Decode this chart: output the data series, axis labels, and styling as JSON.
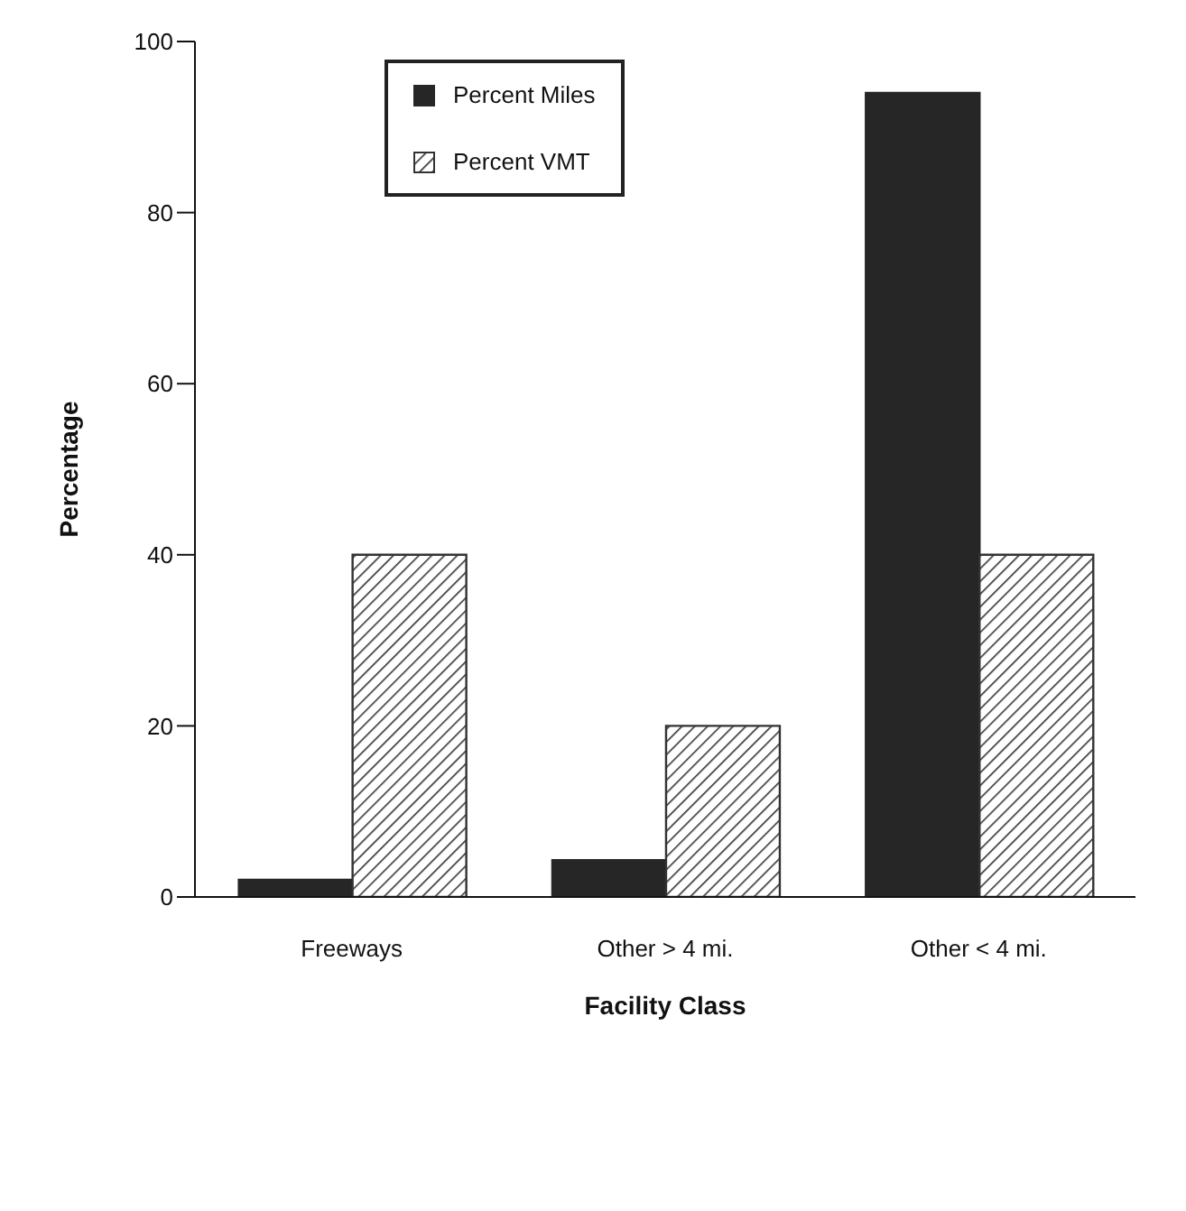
{
  "chart_data": {
    "type": "bar",
    "xlabel": "Facility Class",
    "ylabel": "Percentage",
    "categories": [
      "Freeways",
      "Other > 4 mi.",
      "Other < 4 mi."
    ],
    "series": [
      {
        "name": "Percent Miles",
        "color": "#262626",
        "values": [
          2,
          4.3,
          94
        ]
      },
      {
        "name": "Percent VMT",
        "color": "#333333",
        "values": [
          40,
          20,
          40
        ]
      }
    ],
    "ylim": [
      0,
      100
    ],
    "yticks": [
      0,
      20,
      40,
      60,
      80,
      100
    ],
    "grid": false,
    "legend": "top left"
  }
}
